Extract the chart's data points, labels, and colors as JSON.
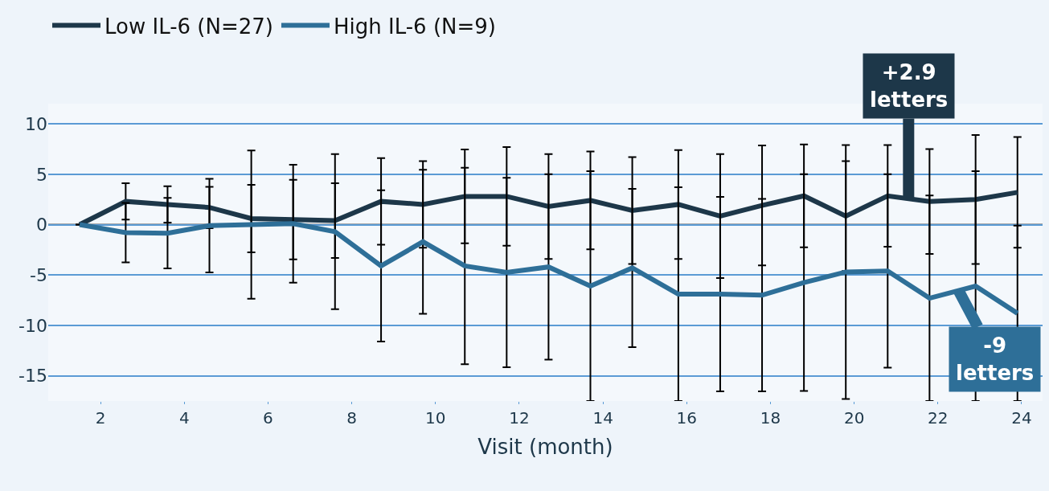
{
  "chart_data": {
    "type": "line",
    "x": [
      1.5,
      2.6,
      3.6,
      4.6,
      5.6,
      6.6,
      7.6,
      8.7,
      9.7,
      10.7,
      11.7,
      12.7,
      13.7,
      14.7,
      15.8,
      16.8,
      17.8,
      18.8,
      19.8,
      20.8,
      21.8,
      22.9,
      23.9
    ],
    "series": [
      {
        "name": "Low IL-6 (N=27)",
        "color": "#1d3749",
        "values": [
          0,
          2.3,
          2.0,
          1.7,
          0.6,
          0.5,
          0.4,
          2.3,
          2.0,
          2.8,
          2.8,
          1.8,
          2.4,
          1.4,
          2.0,
          0.85,
          1.9,
          2.85,
          0.85,
          2.85,
          2.3,
          2.5,
          3.2
        ],
        "errors": [
          null,
          1.8,
          1.8,
          2.05,
          3.35,
          3.95,
          3.7,
          4.3,
          4.3,
          4.65,
          4.9,
          5.2,
          4.85,
          5.3,
          5.4,
          6.15,
          5.95,
          5.1,
          5.45,
          5.05,
          5.2,
          6.4,
          5.5
        ]
      },
      {
        "name": "High IL-6 (N=9)",
        "color": "#2e6f98",
        "values": [
          0,
          -0.8,
          -0.85,
          -0.1,
          0.0,
          0.1,
          -0.7,
          -4.1,
          -1.7,
          -4.1,
          -4.75,
          -4.2,
          -6.1,
          -4.3,
          -6.9,
          -6.9,
          -7.0,
          -5.75,
          -4.7,
          -4.6,
          -7.3,
          -6.1,
          -8.8
        ],
        "errors": [
          null,
          2.95,
          3.5,
          4.65,
          7.35,
          5.85,
          7.7,
          7.5,
          7.15,
          9.75,
          9.4,
          9.2,
          11.4,
          7.85,
          10.6,
          9.65,
          9.55,
          10.75,
          12.6,
          9.6,
          10.2,
          11.4,
          8.7
        ]
      }
    ],
    "xlabel": "Visit (month)",
    "xlim": [
      0.75,
      24.5
    ],
    "xticks": [
      2,
      4,
      6,
      8,
      10,
      12,
      14,
      16,
      18,
      20,
      22,
      24
    ],
    "ylim": [
      -17.5,
      12
    ],
    "yticks": [
      -15,
      -10,
      -5,
      0,
      5,
      10
    ],
    "grid": "y",
    "legend": "top left",
    "marker": "none",
    "line_style": "solid",
    "ref_lines": [
      {
        "axis": "y",
        "value": 0,
        "color": "#555555"
      }
    ],
    "annotations": [
      {
        "text": "+2.9\nletters",
        "x": 21.3,
        "y": 2.6
      },
      {
        "text": "-9\nletters",
        "x": 22.5,
        "y": -6.6
      }
    ]
  }
}
